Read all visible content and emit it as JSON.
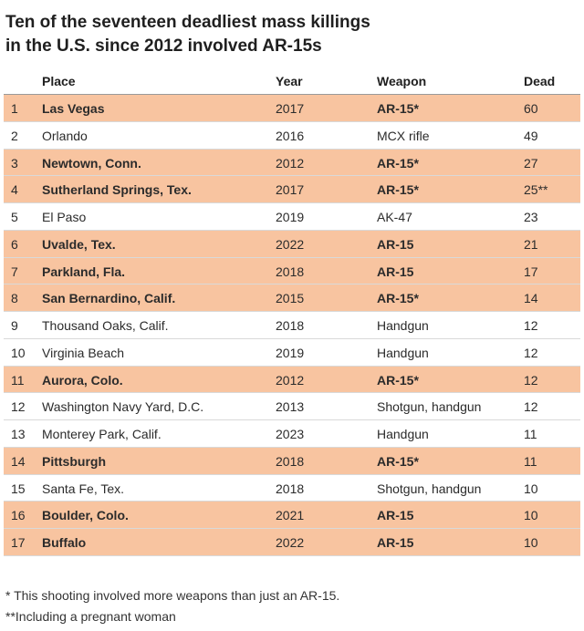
{
  "title": {
    "line1": "Ten of the seventeen deadliest mass killings",
    "line2": "in the U.S. since 2012 involved AR-15s"
  },
  "chart_data": {
    "type": "table",
    "columns": [
      "",
      "Place",
      "Year",
      "Weapon",
      "Dead"
    ],
    "rows": [
      {
        "rank": "1",
        "place": "Las Vegas",
        "year": "2017",
        "weapon": "AR-15*",
        "dead": "60",
        "ar15": true
      },
      {
        "rank": "2",
        "place": "Orlando",
        "year": "2016",
        "weapon": "MCX rifle",
        "dead": "49",
        "ar15": false
      },
      {
        "rank": "3",
        "place": "Newtown, Conn.",
        "year": "2012",
        "weapon": "AR-15*",
        "dead": "27",
        "ar15": true
      },
      {
        "rank": "4",
        "place": "Sutherland Springs, Tex.",
        "year": "2017",
        "weapon": "AR-15*",
        "dead": "25**",
        "ar15": true
      },
      {
        "rank": "5",
        "place": "El Paso",
        "year": "2019",
        "weapon": "AK-47",
        "dead": "23",
        "ar15": false
      },
      {
        "rank": "6",
        "place": "Uvalde, Tex.",
        "year": "2022",
        "weapon": "AR-15",
        "dead": "21",
        "ar15": true
      },
      {
        "rank": "7",
        "place": "Parkland, Fla.",
        "year": "2018",
        "weapon": "AR-15",
        "dead": "17",
        "ar15": true
      },
      {
        "rank": "8",
        "place": "San Bernardino, Calif.",
        "year": "2015",
        "weapon": "AR-15*",
        "dead": "14",
        "ar15": true
      },
      {
        "rank": "9",
        "place": "Thousand Oaks, Calif.",
        "year": "2018",
        "weapon": "Handgun",
        "dead": "12",
        "ar15": false
      },
      {
        "rank": "10",
        "place": "Virginia Beach",
        "year": "2019",
        "weapon": "Handgun",
        "dead": "12",
        "ar15": false
      },
      {
        "rank": "11",
        "place": "Aurora, Colo.",
        "year": "2012",
        "weapon": "AR-15*",
        "dead": "12",
        "ar15": true
      },
      {
        "rank": "12",
        "place": "Washington Navy Yard, D.C.",
        "year": "2013",
        "weapon": "Shotgun, handgun",
        "dead": "12",
        "ar15": false
      },
      {
        "rank": "13",
        "place": "Monterey Park, Calif.",
        "year": "2023",
        "weapon": "Handgun",
        "dead": "11",
        "ar15": false
      },
      {
        "rank": "14",
        "place": "Pittsburgh",
        "year": "2018",
        "weapon": "AR-15*",
        "dead": "11",
        "ar15": true
      },
      {
        "rank": "15",
        "place": "Santa Fe, Tex.",
        "year": "2018",
        "weapon": "Shotgun, handgun",
        "dead": "10",
        "ar15": false
      },
      {
        "rank": "16",
        "place": "Boulder, Colo.",
        "year": "2021",
        "weapon": "AR-15",
        "dead": "10",
        "ar15": true
      },
      {
        "rank": "17",
        "place": "Buffalo",
        "year": "2022",
        "weapon": "AR-15",
        "dead": "10",
        "ar15": true
      }
    ]
  },
  "colors": {
    "highlight": "#f8c4a0"
  },
  "notes": {
    "note1": "*  This shooting involved more weapons than just an AR-15.",
    "note2": "**Including a pregnant woman"
  }
}
